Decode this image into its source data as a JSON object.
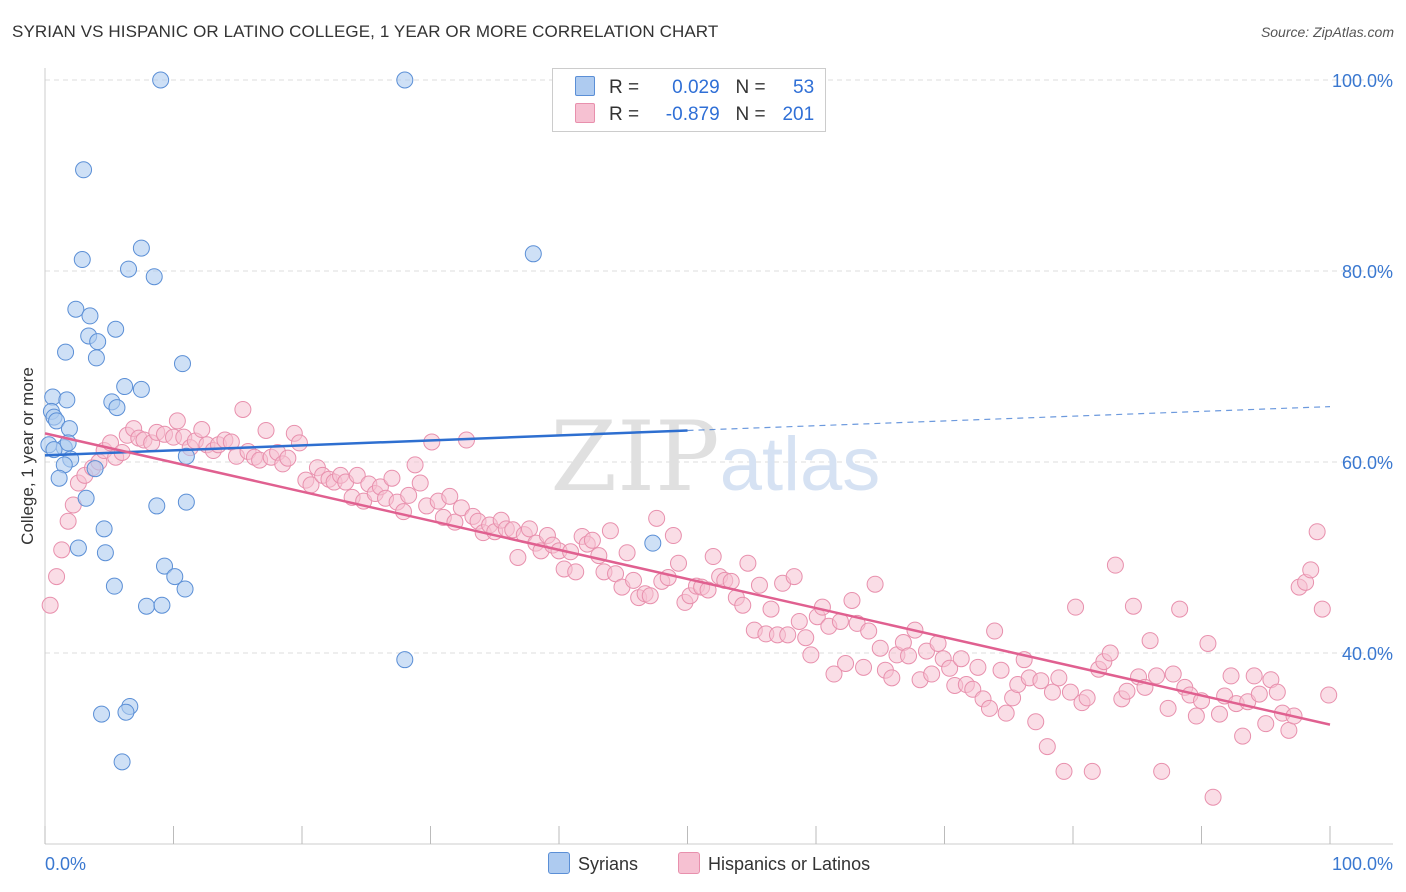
{
  "header": {
    "title": "SYRIAN VS HISPANIC OR LATINO COLLEGE, 1 YEAR OR MORE CORRELATION CHART",
    "source": "Source: ZipAtlas.com"
  },
  "watermark": {
    "zip": "ZIP",
    "atlas": "atlas"
  },
  "legend": {
    "rows": [
      {
        "r_label": "R =",
        "r_value": "0.029",
        "n_label": "N =",
        "n_value": "53"
      },
      {
        "r_label": "R =",
        "r_value": "-0.879",
        "n_label": "N =",
        "n_value": "201"
      }
    ]
  },
  "bottom_legend": {
    "syrians": "Syrians",
    "hispanics": "Hispanics or Latinos"
  },
  "colors": {
    "syrian_fill": "#aecbf0",
    "syrian_stroke": "#5b8fd6",
    "syrian_line": "#2e6fd0",
    "hispanic_fill": "#f6c1d2",
    "hispanic_stroke": "#e890ad",
    "hispanic_line": "#e06090",
    "tick_label": "#3a78d0",
    "grid": "#dddddd"
  },
  "chart_data": {
    "type": "scatter",
    "title": "SYRIAN VS HISPANIC OR LATINO COLLEGE, 1 YEAR OR MORE CORRELATION CHART",
    "xlabel": "",
    "ylabel": "College, 1 year or more",
    "xlim": [
      0,
      100
    ],
    "ylim": [
      20,
      100
    ],
    "x_tick_labels": [
      "0.0%",
      "100.0%"
    ],
    "y_ticks": [
      40,
      60,
      80,
      100
    ],
    "y_tick_labels": [
      "40.0%",
      "60.0%",
      "80.0%",
      "100.0%"
    ],
    "series": [
      {
        "name": "Syrians",
        "r": 0.029,
        "n": 53,
        "trend": {
          "x": [
            0,
            50
          ],
          "y": [
            60.7,
            63.3
          ],
          "dashed_to": [
            100,
            65.8
          ]
        },
        "points": [
          [
            9.0,
            100.0
          ],
          [
            28.0,
            100.0
          ],
          [
            3.0,
            90.6
          ],
          [
            7.5,
            82.4
          ],
          [
            38.0,
            81.8
          ],
          [
            2.9,
            81.2
          ],
          [
            6.5,
            80.2
          ],
          [
            8.5,
            79.4
          ],
          [
            2.4,
            76.0
          ],
          [
            3.5,
            75.3
          ],
          [
            5.5,
            73.9
          ],
          [
            3.4,
            73.2
          ],
          [
            4.1,
            72.6
          ],
          [
            1.6,
            71.5
          ],
          [
            4.0,
            70.9
          ],
          [
            10.7,
            70.3
          ],
          [
            6.2,
            67.9
          ],
          [
            7.5,
            67.6
          ],
          [
            0.6,
            66.8
          ],
          [
            1.7,
            66.5
          ],
          [
            5.2,
            66.3
          ],
          [
            5.6,
            65.7
          ],
          [
            0.5,
            65.3
          ],
          [
            0.7,
            64.7
          ],
          [
            0.9,
            64.3
          ],
          [
            1.9,
            63.5
          ],
          [
            0.3,
            61.8
          ],
          [
            1.5,
            61.5
          ],
          [
            0.7,
            61.3
          ],
          [
            2.0,
            60.3
          ],
          [
            11.0,
            60.6
          ],
          [
            1.5,
            59.7
          ],
          [
            3.9,
            59.3
          ],
          [
            1.1,
            58.3
          ],
          [
            3.2,
            56.2
          ],
          [
            11.0,
            55.8
          ],
          [
            8.7,
            55.4
          ],
          [
            4.6,
            53.0
          ],
          [
            2.6,
            51.0
          ],
          [
            4.7,
            50.5
          ],
          [
            47.3,
            51.5
          ],
          [
            9.3,
            49.1
          ],
          [
            10.1,
            48.0
          ],
          [
            5.4,
            47.0
          ],
          [
            10.9,
            46.7
          ],
          [
            7.9,
            44.9
          ],
          [
            9.1,
            45.0
          ],
          [
            28.0,
            39.3
          ],
          [
            6.6,
            34.4
          ],
          [
            4.4,
            33.6
          ],
          [
            6.3,
            33.8
          ],
          [
            6.0,
            28.6
          ],
          [
            1.8,
            62.0
          ]
        ]
      },
      {
        "name": "Hispanics or Latinos",
        "r": -0.879,
        "n": 201,
        "trend": {
          "x": [
            0,
            100
          ],
          "y": [
            63.0,
            32.5
          ]
        },
        "points": [
          [
            0.4,
            45.0
          ],
          [
            0.9,
            48.0
          ],
          [
            1.3,
            50.8
          ],
          [
            1.8,
            53.8
          ],
          [
            2.2,
            55.5
          ],
          [
            2.6,
            57.8
          ],
          [
            3.1,
            58.6
          ],
          [
            3.7,
            59.4
          ],
          [
            4.2,
            60.0
          ],
          [
            4.6,
            61.2
          ],
          [
            5.1,
            62.0
          ],
          [
            5.5,
            60.5
          ],
          [
            6.0,
            61.0
          ],
          [
            6.4,
            62.8
          ],
          [
            6.9,
            63.5
          ],
          [
            7.3,
            62.5
          ],
          [
            7.7,
            62.3
          ],
          [
            8.3,
            62.0
          ],
          [
            8.7,
            63.1
          ],
          [
            9.3,
            62.9
          ],
          [
            10.0,
            62.6
          ],
          [
            10.3,
            64.3
          ],
          [
            10.8,
            62.6
          ],
          [
            11.3,
            61.5
          ],
          [
            11.7,
            62.2
          ],
          [
            12.2,
            63.4
          ],
          [
            12.6,
            61.8
          ],
          [
            13.1,
            61.2
          ],
          [
            13.5,
            61.8
          ],
          [
            14.0,
            62.3
          ],
          [
            14.5,
            62.1
          ],
          [
            14.9,
            60.6
          ],
          [
            15.4,
            65.5
          ],
          [
            15.8,
            61.1
          ],
          [
            16.3,
            60.5
          ],
          [
            16.7,
            60.2
          ],
          [
            17.2,
            63.3
          ],
          [
            17.6,
            60.5
          ],
          [
            18.1,
            61.0
          ],
          [
            18.5,
            59.8
          ],
          [
            18.9,
            60.4
          ],
          [
            19.4,
            63.0
          ],
          [
            19.8,
            62.0
          ],
          [
            20.3,
            58.1
          ],
          [
            20.7,
            57.6
          ],
          [
            21.2,
            59.4
          ],
          [
            21.6,
            58.6
          ],
          [
            22.1,
            58.2
          ],
          [
            22.5,
            57.9
          ],
          [
            23.0,
            58.6
          ],
          [
            23.4,
            57.9
          ],
          [
            23.9,
            56.3
          ],
          [
            24.3,
            58.6
          ],
          [
            24.8,
            55.9
          ],
          [
            25.2,
            57.7
          ],
          [
            25.7,
            56.7
          ],
          [
            26.1,
            57.4
          ],
          [
            26.5,
            56.2
          ],
          [
            27.0,
            58.3
          ],
          [
            27.4,
            55.8
          ],
          [
            27.9,
            54.8
          ],
          [
            28.3,
            56.5
          ],
          [
            28.8,
            59.7
          ],
          [
            29.2,
            57.8
          ],
          [
            29.7,
            55.4
          ],
          [
            30.1,
            62.1
          ],
          [
            30.6,
            55.9
          ],
          [
            31.0,
            54.2
          ],
          [
            31.5,
            56.4
          ],
          [
            31.9,
            53.7
          ],
          [
            32.4,
            55.2
          ],
          [
            32.8,
            62.3
          ],
          [
            33.3,
            54.3
          ],
          [
            33.7,
            53.8
          ],
          [
            34.1,
            52.6
          ],
          [
            34.6,
            53.4
          ],
          [
            35.0,
            52.7
          ],
          [
            35.5,
            53.9
          ],
          [
            35.9,
            53.0
          ],
          [
            36.4,
            52.9
          ],
          [
            36.8,
            50.0
          ],
          [
            37.3,
            52.4
          ],
          [
            37.7,
            53.0
          ],
          [
            38.2,
            51.5
          ],
          [
            38.6,
            50.7
          ],
          [
            39.1,
            52.3
          ],
          [
            39.5,
            51.3
          ],
          [
            40.0,
            50.7
          ],
          [
            40.4,
            48.8
          ],
          [
            40.9,
            50.6
          ],
          [
            41.3,
            48.5
          ],
          [
            41.8,
            52.2
          ],
          [
            42.2,
            51.4
          ],
          [
            42.6,
            51.8
          ],
          [
            43.1,
            50.2
          ],
          [
            43.5,
            48.5
          ],
          [
            44.0,
            52.8
          ],
          [
            44.4,
            48.3
          ],
          [
            44.9,
            46.9
          ],
          [
            45.3,
            50.5
          ],
          [
            45.8,
            47.6
          ],
          [
            46.2,
            45.8
          ],
          [
            46.7,
            46.2
          ],
          [
            47.1,
            46.0
          ],
          [
            47.6,
            54.1
          ],
          [
            48.0,
            47.5
          ],
          [
            48.5,
            47.9
          ],
          [
            48.9,
            52.3
          ],
          [
            49.3,
            49.4
          ],
          [
            49.8,
            45.3
          ],
          [
            50.2,
            46.0
          ],
          [
            50.7,
            47.0
          ],
          [
            51.1,
            46.9
          ],
          [
            51.6,
            46.6
          ],
          [
            52.0,
            50.1
          ],
          [
            52.5,
            48.0
          ],
          [
            52.9,
            47.6
          ],
          [
            53.4,
            47.5
          ],
          [
            53.8,
            45.8
          ],
          [
            54.3,
            45.0
          ],
          [
            54.7,
            49.4
          ],
          [
            55.2,
            42.4
          ],
          [
            55.6,
            47.1
          ],
          [
            56.1,
            42.0
          ],
          [
            56.5,
            44.6
          ],
          [
            57.0,
            41.9
          ],
          [
            57.4,
            47.3
          ],
          [
            57.8,
            41.9
          ],
          [
            58.3,
            48.0
          ],
          [
            58.7,
            43.3
          ],
          [
            59.2,
            41.6
          ],
          [
            59.6,
            39.8
          ],
          [
            60.1,
            43.8
          ],
          [
            60.5,
            44.8
          ],
          [
            61.0,
            42.8
          ],
          [
            61.4,
            37.8
          ],
          [
            61.9,
            43.3
          ],
          [
            62.3,
            38.9
          ],
          [
            62.8,
            45.5
          ],
          [
            63.2,
            43.1
          ],
          [
            63.7,
            38.5
          ],
          [
            64.1,
            42.3
          ],
          [
            64.6,
            47.2
          ],
          [
            65.0,
            40.5
          ],
          [
            65.4,
            38.2
          ],
          [
            65.9,
            37.4
          ],
          [
            66.3,
            39.8
          ],
          [
            66.8,
            41.1
          ],
          [
            67.2,
            39.7
          ],
          [
            67.7,
            42.4
          ],
          [
            68.1,
            37.2
          ],
          [
            68.6,
            40.2
          ],
          [
            69.0,
            37.8
          ],
          [
            69.5,
            41.0
          ],
          [
            69.9,
            39.4
          ],
          [
            70.4,
            38.4
          ],
          [
            70.8,
            36.6
          ],
          [
            71.3,
            39.4
          ],
          [
            71.7,
            36.7
          ],
          [
            72.2,
            36.2
          ],
          [
            72.6,
            38.5
          ],
          [
            73.0,
            35.2
          ],
          [
            73.5,
            34.2
          ],
          [
            73.9,
            42.3
          ],
          [
            74.4,
            38.2
          ],
          [
            74.8,
            33.7
          ],
          [
            75.3,
            35.3
          ],
          [
            75.7,
            36.7
          ],
          [
            76.2,
            39.3
          ],
          [
            76.6,
            37.4
          ],
          [
            77.1,
            32.8
          ],
          [
            77.5,
            37.1
          ],
          [
            78.0,
            30.2
          ],
          [
            78.4,
            35.9
          ],
          [
            78.9,
            37.4
          ],
          [
            79.3,
            27.6
          ],
          [
            79.8,
            35.9
          ],
          [
            80.2,
            44.8
          ],
          [
            80.7,
            34.8
          ],
          [
            81.1,
            35.3
          ],
          [
            81.5,
            27.6
          ],
          [
            82.0,
            38.3
          ],
          [
            82.4,
            39.1
          ],
          [
            82.9,
            40.0
          ],
          [
            83.3,
            49.2
          ],
          [
            83.8,
            35.2
          ],
          [
            84.2,
            36.0
          ],
          [
            84.7,
            44.9
          ],
          [
            85.1,
            37.5
          ],
          [
            85.6,
            36.4
          ],
          [
            86.0,
            41.3
          ],
          [
            86.5,
            37.6
          ],
          [
            86.9,
            27.6
          ],
          [
            87.4,
            34.2
          ],
          [
            87.8,
            37.8
          ],
          [
            88.3,
            44.6
          ],
          [
            88.7,
            36.4
          ],
          [
            89.1,
            35.6
          ],
          [
            89.6,
            33.4
          ],
          [
            90.0,
            35.0
          ],
          [
            90.5,
            41.0
          ],
          [
            90.9,
            24.9
          ],
          [
            91.4,
            33.6
          ],
          [
            91.8,
            35.5
          ],
          [
            92.3,
            37.6
          ],
          [
            92.7,
            34.7
          ],
          [
            93.2,
            31.3
          ],
          [
            93.6,
            34.9
          ],
          [
            94.1,
            37.6
          ],
          [
            94.5,
            35.7
          ],
          [
            95.0,
            32.6
          ],
          [
            95.4,
            37.2
          ],
          [
            95.9,
            35.9
          ],
          [
            96.3,
            33.7
          ],
          [
            96.8,
            31.9
          ],
          [
            97.2,
            33.4
          ],
          [
            97.6,
            46.9
          ],
          [
            98.1,
            47.4
          ],
          [
            98.5,
            48.7
          ],
          [
            99.0,
            52.7
          ],
          [
            99.4,
            44.6
          ],
          [
            99.9,
            35.6
          ]
        ]
      }
    ]
  }
}
